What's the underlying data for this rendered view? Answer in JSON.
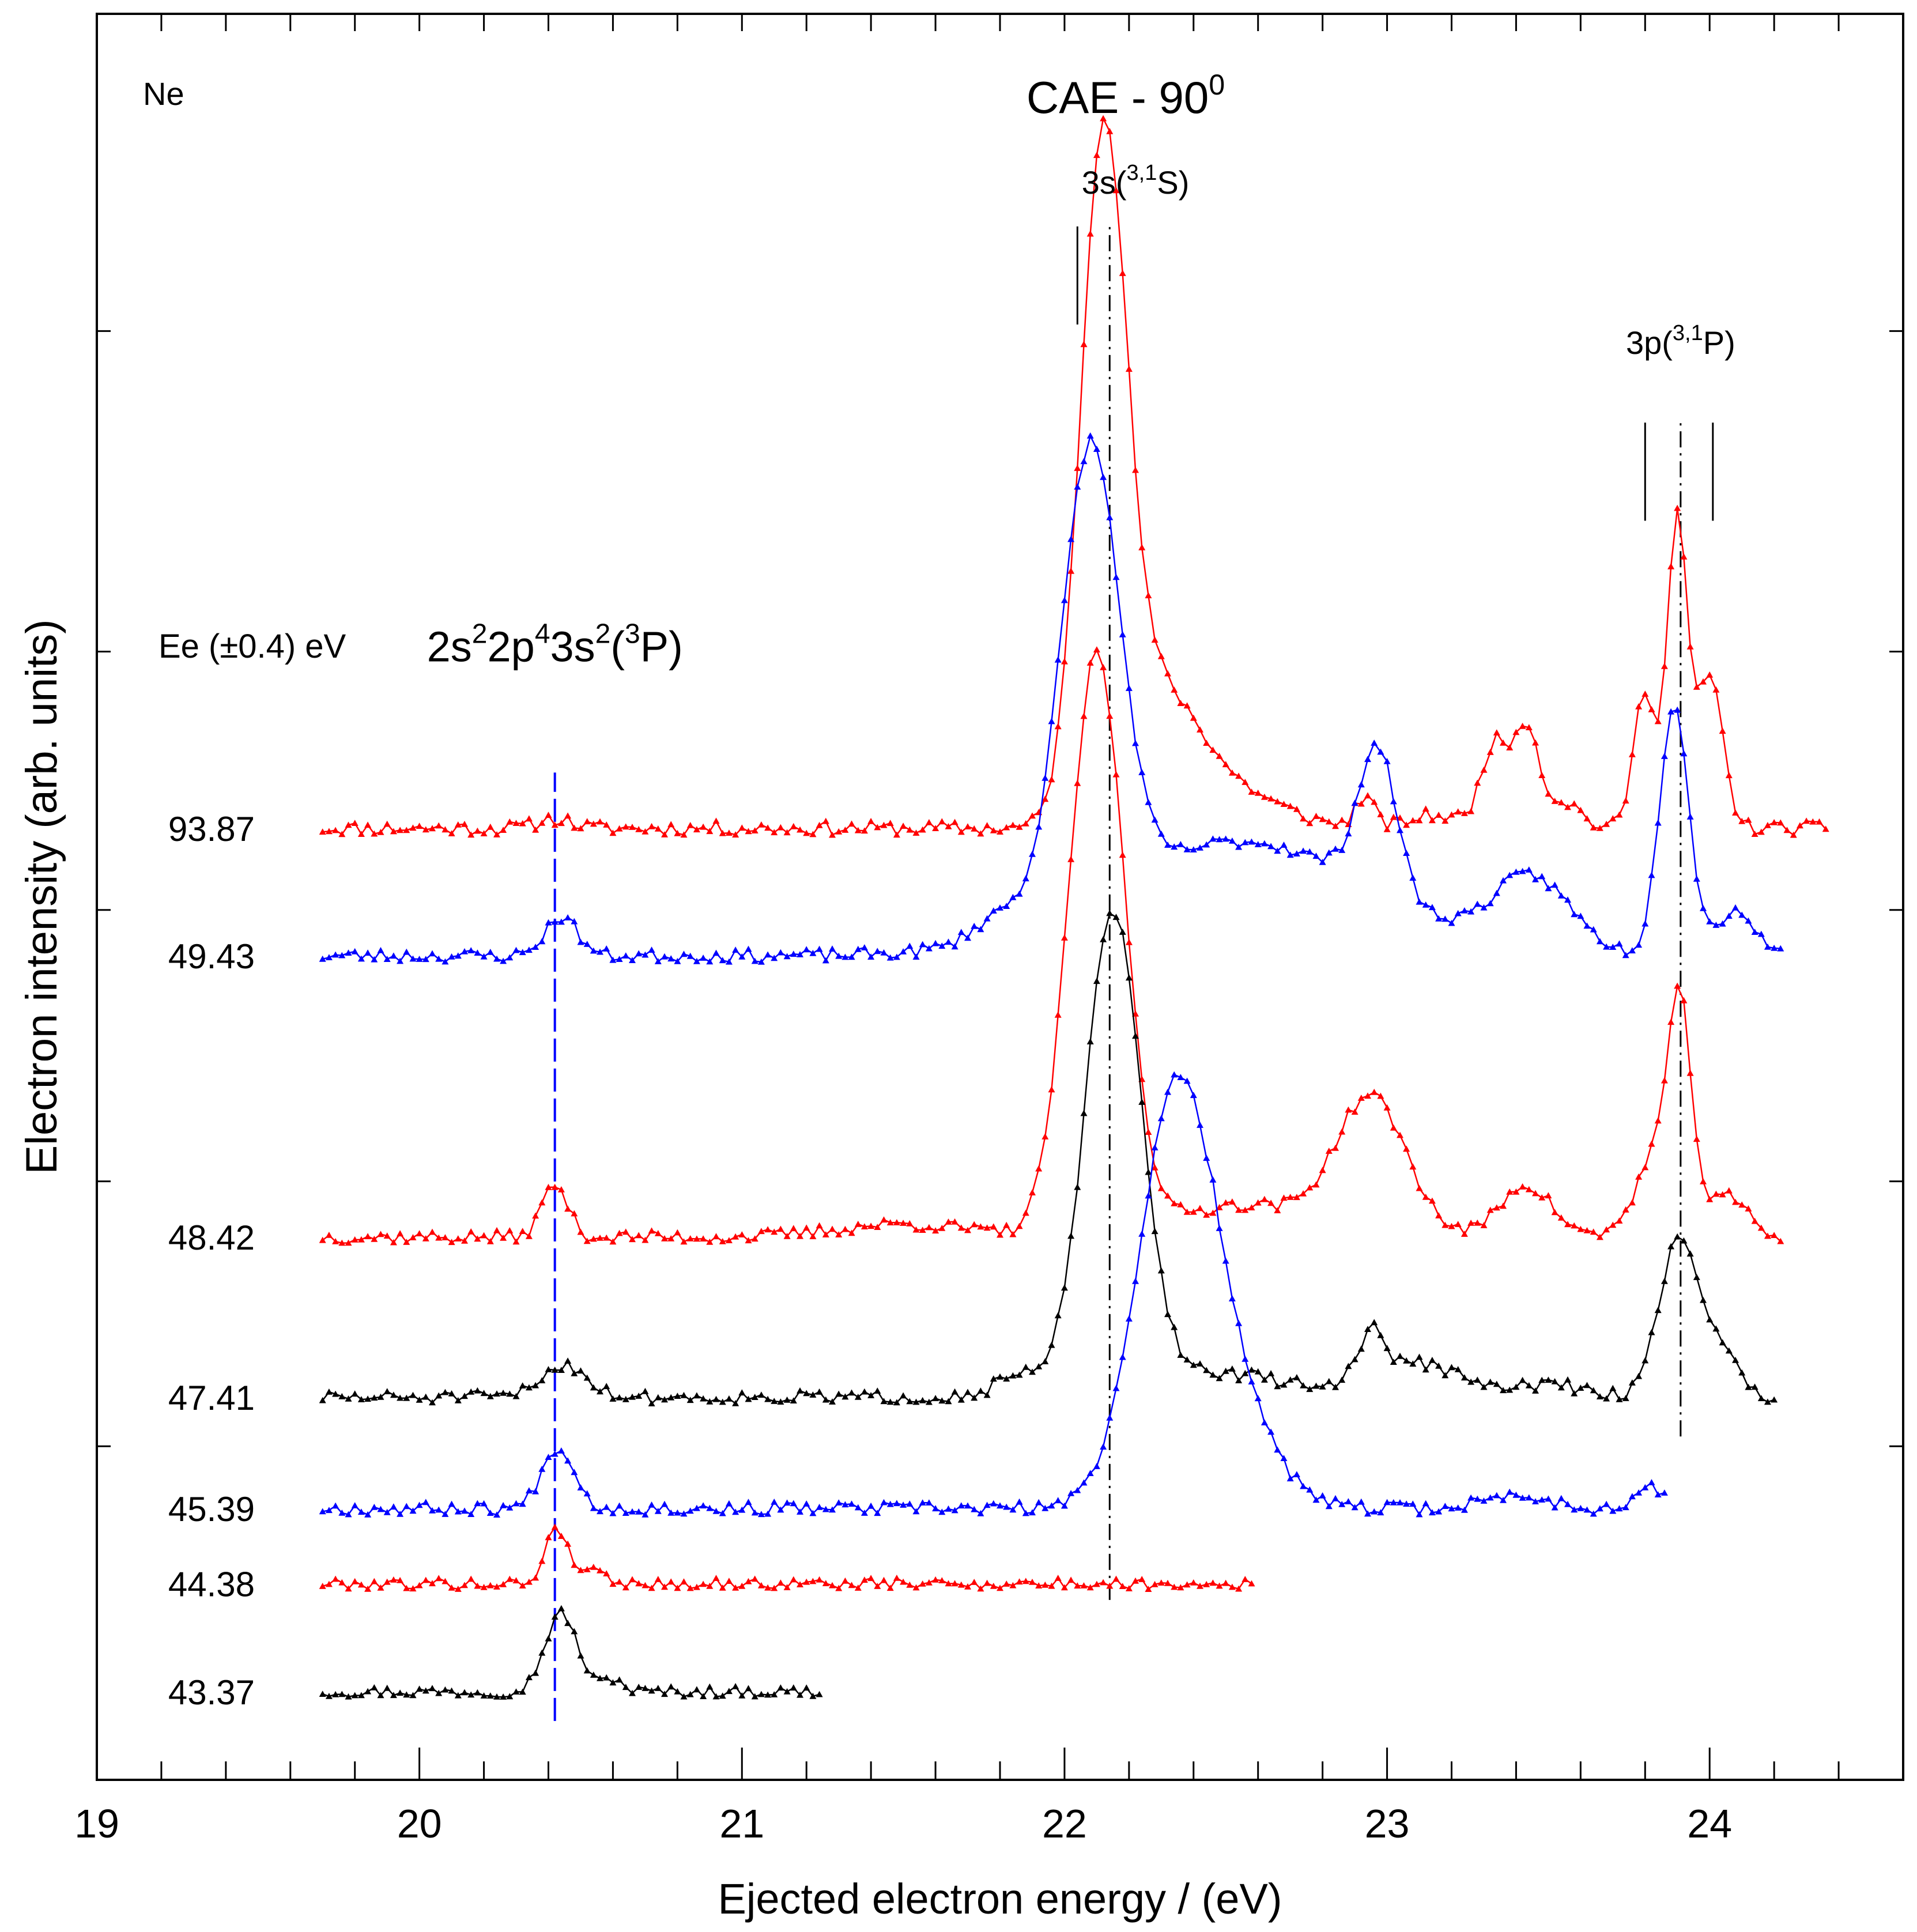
{
  "chart_data": {
    "type": "line",
    "title": "CAE - 90",
    "title_superscript": "0",
    "element_label": "Ne",
    "xlabel": "Ejected electron energy / (eV)",
    "ylabel": "Electron intensity (arb. units)",
    "legend_title": "Ee (±0.4)  eV",
    "xlim": [
      19.0,
      24.6
    ],
    "ylim": [
      -0.1,
      5.3
    ],
    "x_ticks": [
      19,
      20,
      21,
      22,
      23,
      24
    ],
    "x_tick_labels": [
      "19",
      "20",
      "21",
      "22",
      "23",
      "24"
    ],
    "x_minor_step": 0.2,
    "annotations": [
      {
        "id": "peak-3p43s2",
        "parts": [
          "2s",
          "2",
          "2p",
          "4",
          "3s",
          "2",
          "(",
          "3",
          "P)"
        ],
        "x": 20.42,
        "y": 3.32
      },
      {
        "id": "peak-3s",
        "parts": [
          "3s(",
          "3,1",
          "S)"
        ],
        "x": 22.22,
        "y": 4.75
      },
      {
        "id": "peak-3p",
        "parts": [
          "3p(",
          "3,1",
          "P)"
        ],
        "x": 23.91,
        "y": 4.26
      }
    ],
    "reference_lines": [
      {
        "x": 20.42,
        "y_from": 0.08,
        "y_to": 2.98,
        "style": "long-dash",
        "color": "#0000ff"
      },
      {
        "x": 22.14,
        "y_from": 0.45,
        "y_to": 4.65,
        "style": "dash-dot",
        "color": "#000000"
      },
      {
        "x": 22.04,
        "y_from": 4.35,
        "y_to": 4.65,
        "style": "solid",
        "color": "#000000"
      },
      {
        "x": 23.91,
        "y_from": 0.95,
        "y_to": 4.05,
        "style": "dash-dot",
        "color": "#000000"
      },
      {
        "x": 23.8,
        "y_from": 3.75,
        "y_to": 4.05,
        "style": "solid",
        "color": "#000000"
      },
      {
        "x": 24.01,
        "y_from": 3.75,
        "y_to": 4.05,
        "style": "solid",
        "color": "#000000"
      }
    ],
    "series": [
      {
        "name": "93.87",
        "color": "#ff0000",
        "label_y": 2.81,
        "x_range": [
          19.7,
          24.35
        ],
        "step": 0.02,
        "baseline": 2.81,
        "noise": 0.022,
        "seed": 11,
        "peaks": [
          [
            20.42,
            0.03,
            0.05
          ],
          [
            22.12,
            2.0,
            0.07
          ],
          [
            22.28,
            0.4,
            0.13
          ],
          [
            22.52,
            0.1,
            0.16
          ],
          [
            22.93,
            0.09,
            0.03
          ],
          [
            23.15,
            0.04,
            0.08
          ],
          [
            23.33,
            0.25,
            0.04
          ],
          [
            23.43,
            0.32,
            0.04
          ],
          [
            23.55,
            0.08,
            0.05
          ],
          [
            23.8,
            0.42,
            0.035
          ],
          [
            23.9,
            0.95,
            0.03
          ],
          [
            24.0,
            0.47,
            0.04
          ]
        ]
      },
      {
        "name": "49.43",
        "color": "#0000ff",
        "label_y": 2.42,
        "x_range": [
          19.7,
          24.22
        ],
        "step": 0.02,
        "baseline": 2.42,
        "noise": 0.02,
        "seed": 23,
        "peaks": [
          [
            20.44,
            0.12,
            0.05
          ],
          [
            21.8,
            0.07,
            0.08
          ],
          [
            22.08,
            1.4,
            0.09
          ],
          [
            22.55,
            0.35,
            0.4
          ],
          [
            22.97,
            0.44,
            0.06
          ],
          [
            23.45,
            0.22,
            0.12
          ],
          [
            23.89,
            0.78,
            0.045
          ],
          [
            24.08,
            0.14,
            0.06
          ]
        ]
      },
      {
        "name": "48.42",
        "color": "#ff0000",
        "label_y": 1.56,
        "x_range": [
          19.7,
          24.21
        ],
        "step": 0.02,
        "baseline": 1.56,
        "noise": 0.02,
        "seed": 37,
        "peaks": [
          [
            20.42,
            0.16,
            0.04
          ],
          [
            21.5,
            0.04,
            0.2
          ],
          [
            22.1,
            1.78,
            0.085
          ],
          [
            22.55,
            0.1,
            0.2
          ],
          [
            22.95,
            0.42,
            0.11
          ],
          [
            23.43,
            0.16,
            0.08
          ],
          [
            23.85,
            0.28,
            0.07
          ],
          [
            23.91,
            0.55,
            0.035
          ],
          [
            24.06,
            0.12,
            0.06
          ]
        ]
      },
      {
        "name": "47.41",
        "color": "#000000",
        "label_y": 1.07,
        "x_range": [
          19.7,
          24.2
        ],
        "step": 0.02,
        "baseline": 1.07,
        "noise": 0.02,
        "seed": 51,
        "peaks": [
          [
            20.45,
            0.1,
            0.07
          ],
          [
            21.85,
            0.05,
            0.06
          ],
          [
            22.15,
            1.43,
            0.085
          ],
          [
            22.38,
            0.08,
            0.3
          ],
          [
            22.95,
            0.15,
            0.04
          ],
          [
            23.1,
            0.1,
            0.13
          ],
          [
            23.5,
            0.04,
            0.1
          ],
          [
            23.9,
            0.46,
            0.06
          ],
          [
            24.02,
            0.15,
            0.06
          ]
        ]
      },
      {
        "name": "45.39",
        "color": "#0000ff",
        "label_y": 0.73,
        "x_range": [
          19.7,
          23.85
        ],
        "step": 0.02,
        "baseline": 0.73,
        "noise": 0.02,
        "seed": 67,
        "peaks": [
          [
            20.43,
            0.19,
            0.05
          ],
          [
            22.35,
            1.27,
            0.12
          ],
          [
            22.55,
            0.2,
            0.12
          ],
          [
            23.4,
            0.04,
            0.1
          ],
          [
            23.82,
            0.06,
            0.05
          ]
        ]
      },
      {
        "name": "44.38",
        "color": "#ff0000",
        "label_y": 0.5,
        "x_range": [
          19.7,
          22.58
        ],
        "step": 0.02,
        "baseline": 0.5,
        "noise": 0.017,
        "seed": 79,
        "peaks": [
          [
            20.42,
            0.16,
            0.03
          ],
          [
            20.5,
            0.05,
            0.06
          ]
        ]
      },
      {
        "name": "43.37",
        "color": "#000000",
        "label_y": 0.17,
        "x_range": [
          19.7,
          21.23
        ],
        "step": 0.02,
        "baseline": 0.17,
        "noise": 0.017,
        "seed": 97,
        "peaks": [
          [
            20.44,
            0.24,
            0.05
          ],
          [
            20.6,
            0.04,
            0.03
          ]
        ]
      }
    ]
  }
}
